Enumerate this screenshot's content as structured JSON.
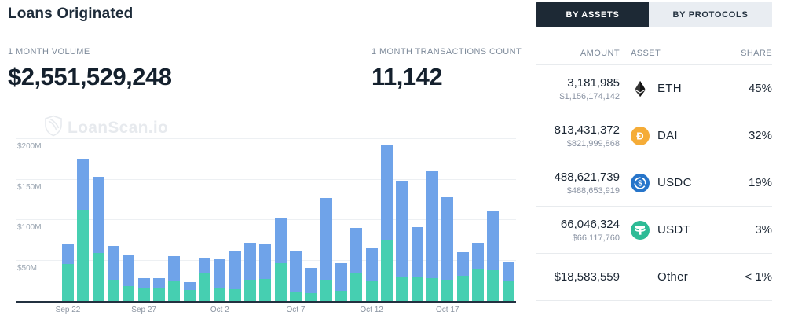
{
  "header": {
    "title": "Loans Originated"
  },
  "stats": {
    "volume": {
      "label": "1 MONTH VOLUME",
      "value": "$2,551,529,248"
    },
    "transactions": {
      "label": "1 MONTH TRANSACTIONS COUNT",
      "value": "11,142"
    }
  },
  "watermark": {
    "text": "LoanScan.io"
  },
  "tabs": [
    {
      "label": "BY ASSETS",
      "active": true
    },
    {
      "label": "BY PROTOCOLS",
      "active": false
    }
  ],
  "table": {
    "headers": {
      "amount": "AMOUNT",
      "asset": "ASSET",
      "share": "SHARE"
    },
    "rows": [
      {
        "amount": "3,181,985",
        "amount_usd": "$1,156,174,142",
        "asset": "ETH",
        "icon": "eth-icon",
        "icon_color": "#343434",
        "share": "45%"
      },
      {
        "amount": "813,431,372",
        "amount_usd": "$821,999,868",
        "asset": "DAI",
        "icon": "dai-icon",
        "icon_color": "#F5AC37",
        "share": "32%"
      },
      {
        "amount": "488,621,739",
        "amount_usd": "$488,653,919",
        "asset": "USDC",
        "icon": "usdc-icon",
        "icon_color": "#2775CA",
        "share": "19%"
      },
      {
        "amount": "66,046,324",
        "amount_usd": "$66,117,760",
        "asset": "USDT",
        "icon": "usdt-icon",
        "icon_color": "#2DBB96",
        "share": "3%"
      },
      {
        "amount": "$18,583,559",
        "amount_usd": "",
        "asset": "Other",
        "icon": "",
        "icon_color": "",
        "share": "< 1%"
      }
    ]
  },
  "chart_data": {
    "type": "bar",
    "stacked": true,
    "unit": "USD millions",
    "x": [
      "Sep 22",
      "Sep 23",
      "Sep 24",
      "Sep 25",
      "Sep 26",
      "Sep 27",
      "Sep 28",
      "Sep 29",
      "Sep 30",
      "Oct 1",
      "Oct 2",
      "Oct 3",
      "Oct 4",
      "Oct 5",
      "Oct 6",
      "Oct 7",
      "Oct 8",
      "Oct 9",
      "Oct 10",
      "Oct 11",
      "Oct 12",
      "Oct 13",
      "Oct 14",
      "Oct 15",
      "Oct 16",
      "Oct 17",
      "Oct 18",
      "Oct 19",
      "Oct 20",
      "Oct 21"
    ],
    "series": [
      {
        "name": "bottom-green",
        "color": "#46CFB1",
        "values": [
          46,
          113,
          59,
          26,
          18,
          16,
          17,
          24,
          14,
          34,
          17,
          15,
          26,
          27,
          47,
          11,
          10,
          26,
          13,
          34,
          24,
          75,
          29,
          30,
          28,
          26,
          31,
          40,
          39,
          25
        ]
      },
      {
        "name": "top-blue",
        "color": "#6FA3E9",
        "values": [
          24,
          63,
          94,
          42,
          38,
          12,
          11,
          31,
          9,
          19,
          34,
          47,
          46,
          43,
          56,
          50,
          31,
          101,
          34,
          56,
          42,
          118,
          119,
          61,
          132,
          102,
          29,
          32,
          72,
          24
        ]
      }
    ],
    "ylim": [
      0,
      200
    ],
    "yticks": [
      {
        "value": 50,
        "label": "$50M"
      },
      {
        "value": 100,
        "label": "$100M"
      },
      {
        "value": 150,
        "label": "$150M"
      },
      {
        "value": 200,
        "label": "$200M"
      }
    ],
    "x_tick_indices": [
      0,
      5,
      10,
      15,
      20,
      25
    ],
    "x_tick_labels": [
      "Sep 22",
      "Sep 27",
      "Oct 2",
      "Oct 7",
      "Oct 12",
      "Oct 17"
    ],
    "grid": true,
    "legend": "none"
  }
}
